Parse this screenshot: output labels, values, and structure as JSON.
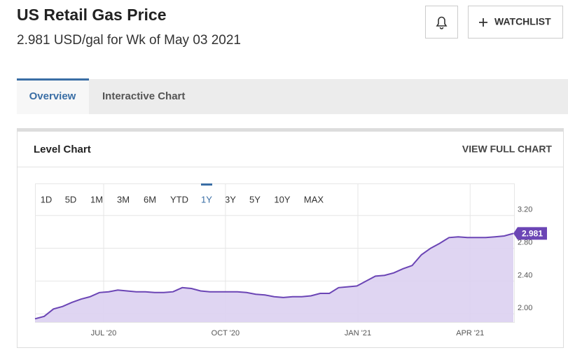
{
  "header": {
    "title": "US Retail Gas Price",
    "subtitle": "2.981 USD/gal for Wk of May 03 2021",
    "watchlist": "WATCHLIST"
  },
  "tabs": [
    "Overview",
    "Interactive Chart"
  ],
  "card": {
    "title": "Level Chart",
    "link": "VIEW FULL CHART",
    "ranges": [
      "1D",
      "5D",
      "1M",
      "3M",
      "6M",
      "YTD",
      "1Y",
      "3Y",
      "5Y",
      "10Y",
      "MAX"
    ]
  },
  "chart_data": {
    "type": "area",
    "color": "#6b45b5",
    "fill": "#dcd0f1",
    "values": [
      1.94,
      1.97,
      2.06,
      2.09,
      2.14,
      2.18,
      2.21,
      2.26,
      2.27,
      2.29,
      2.28,
      2.27,
      2.27,
      2.26,
      2.26,
      2.27,
      2.32,
      2.31,
      2.28,
      2.27,
      2.27,
      2.27,
      2.27,
      2.26,
      2.24,
      2.23,
      2.21,
      2.2,
      2.21,
      2.21,
      2.22,
      2.25,
      2.25,
      2.32,
      2.33,
      2.34,
      2.4,
      2.46,
      2.47,
      2.5,
      2.55,
      2.59,
      2.72,
      2.8,
      2.86,
      2.93,
      2.94,
      2.93,
      2.93,
      2.93,
      2.94,
      2.95,
      2.981
    ],
    "xlim": [
      0,
      52
    ],
    "xticks": [
      {
        "value": 7.46,
        "label": "JUL '20"
      },
      {
        "value": 20.7,
        "label": "OCT '20"
      },
      {
        "value": 35.1,
        "label": "JAN '21"
      },
      {
        "value": 47.3,
        "label": "APR '21"
      }
    ],
    "ylim": [
      1.9,
      3.59
    ],
    "yticks": [
      {
        "value": 2,
        "label": "2.00"
      },
      {
        "value": 2.4,
        "label": "2.40"
      },
      {
        "value": 2.8,
        "label": "2.80"
      },
      {
        "value": 3.2,
        "label": "3.20"
      }
    ],
    "grid": true
  }
}
